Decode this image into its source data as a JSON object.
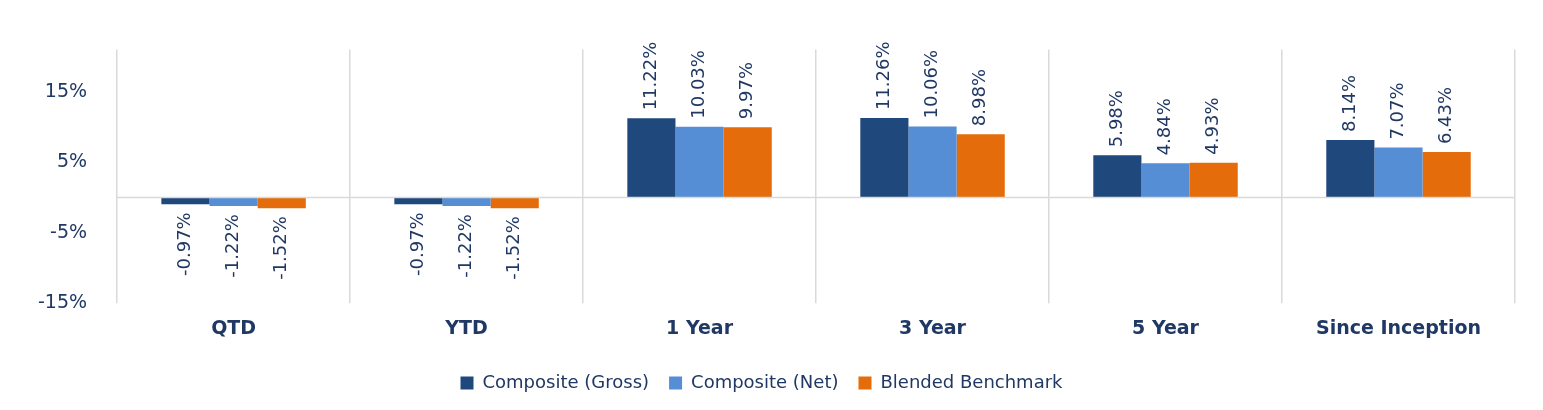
{
  "chart_data": {
    "type": "bar",
    "categories": [
      "QTD",
      "YTD",
      "1 Year",
      "3 Year",
      "5 Year",
      "Since Inception"
    ],
    "series": [
      {
        "name": "Composite (Gross)",
        "color": "#1f497d",
        "values": [
          -0.97,
          -0.97,
          11.22,
          11.26,
          5.98,
          8.14
        ],
        "value_labels": [
          "-0.97%",
          "-0.97%",
          "11.22%",
          "11.26%",
          "5.98%",
          "8.14%"
        ]
      },
      {
        "name": "Composite (Net)",
        "color": "#558ed5",
        "values": [
          -1.22,
          -1.22,
          10.03,
          10.06,
          4.84,
          7.07
        ],
        "value_labels": [
          "-1.22%",
          "-1.22%",
          "10.03%",
          "10.06%",
          "4.84%",
          "7.07%"
        ]
      },
      {
        "name": "Blended Benchmark",
        "color": "#e46c0a",
        "values": [
          -1.52,
          -1.52,
          9.97,
          8.98,
          4.93,
          6.43
        ],
        "value_labels": [
          "-1.52%",
          "-1.52%",
          "9.97%",
          "8.98%",
          "4.93%",
          "6.43%"
        ]
      }
    ],
    "ylim": [
      -15,
      21
    ],
    "yticks": [
      {
        "value": -15,
        "label": "-15%"
      },
      {
        "value": -5,
        "label": "-5%"
      },
      {
        "value": 5,
        "label": "5%"
      },
      {
        "value": 15,
        "label": "15%"
      }
    ],
    "grid": "x",
    "legend": "bottom"
  }
}
